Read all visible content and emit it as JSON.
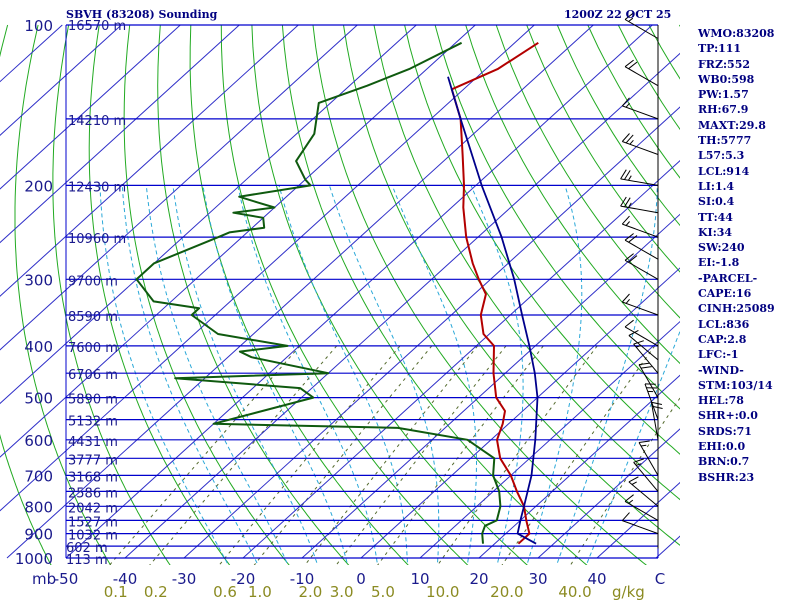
{
  "header": {
    "station_title": "SBVH (83208) Sounding",
    "timestamp": "1200Z 22 OCT 25"
  },
  "indices": [
    "WMO:83208",
    "TP:111",
    "FRZ:552",
    "WB0:598",
    "PW:1.57",
    "RH:67.9",
    "MAXT:29.8",
    "TH:5777",
    "L57:5.3",
    "LCL:914",
    "LI:1.4",
    "SI:0.4",
    "TT:44",
    "KI:34",
    "SW:240",
    "EI:-1.8",
    "-PARCEL-",
    "CAPE:16",
    "CINH:25089",
    "LCL:836",
    "CAP:2.8",
    "LFC:-1",
    "-WIND-",
    "STM:103/14",
    "HEL:78",
    "SHR+:0.0",
    "SRDS:71",
    "EHI:0.0",
    "BRN:0.7",
    "BSHR:23"
  ],
  "colors": {
    "isobar": "#0000cd",
    "isotherm": "#2e2ec8",
    "dry_adiabat": "#22aa22",
    "moist_adiabat": "#2aa8d8",
    "mixing_ratio": "#556b2f",
    "temperature": "#b30000",
    "dewpoint": "#0f5a0f",
    "parcel": "#00008b",
    "axis_text": "#1a1a8c",
    "mixing_text": "#8b8b22",
    "wind": "#000000"
  },
  "chart_data": {
    "type": "line",
    "title": "SBVH (83208) Sounding",
    "x_label": "C",
    "y_label": "mb",
    "xlim": [
      -50,
      50
    ],
    "ylim": [
      1000,
      100
    ],
    "pressure_ticks": [
      100,
      200,
      300,
      400,
      500,
      600,
      700,
      800,
      900,
      1000
    ],
    "temperature_ticks": [
      -50,
      -40,
      -30,
      -20,
      -10,
      0,
      10,
      20,
      30,
      40
    ],
    "height_levels": [
      {
        "p": 100,
        "label": "16570 m"
      },
      {
        "p": 150,
        "label": "14210 m"
      },
      {
        "p": 200,
        "label": "12430 m"
      },
      {
        "p": 250,
        "label": "10960 m"
      },
      {
        "p": 300,
        "label": "9700 m"
      },
      {
        "p": 350,
        "label": "8590 m"
      },
      {
        "p": 400,
        "label": "7600 m"
      },
      {
        "p": 450,
        "label": "6706 m"
      },
      {
        "p": 500,
        "label": "5890 m"
      },
      {
        "p": 550,
        "label": "5132 m"
      },
      {
        "p": 600,
        "label": "4431 m"
      },
      {
        "p": 650,
        "label": "3777 m"
      },
      {
        "p": 700,
        "label": "3168 m"
      },
      {
        "p": 750,
        "label": "2586 m"
      },
      {
        "p": 800,
        "label": "2042 m"
      },
      {
        "p": 850,
        "label": "1527 m"
      },
      {
        "p": 900,
        "label": "1032 m"
      },
      {
        "p": 950,
        "label": "602 m"
      },
      {
        "p": 1000,
        "label": "113 m"
      }
    ],
    "mixing_ratio_labels": [
      {
        "w": 0.1,
        "label": "0.1"
      },
      {
        "w": 0.2,
        "label": "0.2"
      },
      {
        "w": 0.6,
        "label": "0.6"
      },
      {
        "w": 1.0,
        "label": "1.0"
      },
      {
        "w": 2.0,
        "label": "2.0"
      },
      {
        "w": 3.0,
        "label": "3.0"
      },
      {
        "w": 5.0,
        "label": "5.0"
      },
      {
        "w": 10.0,
        "label": "10.0"
      },
      {
        "w": 20.0,
        "label": "20.0"
      },
      {
        "w": 40.0,
        "label": "40.0"
      }
    ],
    "mixing_ratio_unit": "g/kg",
    "series": [
      {
        "name": "temperature",
        "points": [
          [
            108,
            -66
          ],
          [
            121,
            -68
          ],
          [
            132,
            -72
          ],
          [
            150,
            -65
          ],
          [
            175,
            -58
          ],
          [
            200,
            -52
          ],
          [
            220,
            -48
          ],
          [
            250,
            -42
          ],
          [
            280,
            -36
          ],
          [
            300,
            -32
          ],
          [
            320,
            -28
          ],
          [
            350,
            -25
          ],
          [
            380,
            -21
          ],
          [
            400,
            -17
          ],
          [
            450,
            -12
          ],
          [
            500,
            -7
          ],
          [
            530,
            -3
          ],
          [
            560,
            -1
          ],
          [
            600,
            1
          ],
          [
            650,
            5
          ],
          [
            700,
            10
          ],
          [
            750,
            14
          ],
          [
            800,
            18
          ],
          [
            850,
            21
          ],
          [
            900,
            24
          ],
          [
            940,
            24
          ]
        ]
      },
      {
        "name": "dewpoint",
        "points": [
          [
            108,
            -79
          ],
          [
            121,
            -83
          ],
          [
            130,
            -87
          ],
          [
            140,
            -92
          ],
          [
            160,
            -87
          ],
          [
            180,
            -85
          ],
          [
            195,
            -80
          ],
          [
            200,
            -78
          ],
          [
            210,
            -88
          ],
          [
            215,
            -84
          ],
          [
            220,
            -80
          ],
          [
            225,
            -86
          ],
          [
            230,
            -80
          ],
          [
            240,
            -78
          ],
          [
            245,
            -83
          ],
          [
            250,
            -84
          ],
          [
            280,
            -90
          ],
          [
            300,
            -90
          ],
          [
            330,
            -83
          ],
          [
            340,
            -74
          ],
          [
            350,
            -74
          ],
          [
            380,
            -66
          ],
          [
            400,
            -52
          ],
          [
            410,
            -59
          ],
          [
            420,
            -56
          ],
          [
            450,
            -40
          ],
          [
            460,
            -65
          ],
          [
            480,
            -42
          ],
          [
            500,
            -38
          ],
          [
            560,
            -50
          ],
          [
            570,
            -18
          ],
          [
            600,
            -4
          ],
          [
            650,
            4
          ],
          [
            700,
            7
          ],
          [
            750,
            11
          ],
          [
            800,
            14
          ],
          [
            850,
            16
          ],
          [
            870,
            15
          ],
          [
            900,
            16
          ],
          [
            940,
            18
          ]
        ]
      },
      {
        "name": "parcel",
        "points": [
          [
            940,
            27
          ],
          [
            900,
            22
          ],
          [
            850,
            20
          ],
          [
            800,
            18
          ],
          [
            700,
            13.5
          ],
          [
            600,
            7.5
          ],
          [
            500,
            0
          ],
          [
            450,
            -5
          ],
          [
            400,
            -11
          ],
          [
            350,
            -18
          ],
          [
            300,
            -26
          ],
          [
            250,
            -36
          ],
          [
            200,
            -49
          ],
          [
            150,
            -65
          ],
          [
            125,
            -75
          ]
        ]
      }
    ],
    "winds": [
      {
        "p": 106,
        "dir": 300,
        "spd": 15
      },
      {
        "p": 130,
        "dir": 300,
        "spd": 20
      },
      {
        "p": 150,
        "dir": 290,
        "spd": 15
      },
      {
        "p": 175,
        "dir": 290,
        "spd": 25
      },
      {
        "p": 200,
        "dir": 280,
        "spd": 25
      },
      {
        "p": 225,
        "dir": 280,
        "spd": 25
      },
      {
        "p": 250,
        "dir": 290,
        "spd": 15
      },
      {
        "p": 275,
        "dir": 300,
        "spd": 20
      },
      {
        "p": 300,
        "dir": 300,
        "spd": 20
      },
      {
        "p": 350,
        "dir": 290,
        "spd": 15
      },
      {
        "p": 400,
        "dir": 300,
        "spd": 10
      },
      {
        "p": 425,
        "dir": 310,
        "spd": 10
      },
      {
        "p": 450,
        "dir": 320,
        "spd": 15
      },
      {
        "p": 500,
        "dir": 330,
        "spd": 20
      },
      {
        "p": 550,
        "dir": 340,
        "spd": 25
      },
      {
        "p": 600,
        "dir": 350,
        "spd": 20
      },
      {
        "p": 700,
        "dir": 330,
        "spd": 15
      },
      {
        "p": 750,
        "dir": 320,
        "spd": 15
      },
      {
        "p": 800,
        "dir": 310,
        "spd": 15
      },
      {
        "p": 850,
        "dir": 300,
        "spd": 15
      },
      {
        "p": 900,
        "dir": 290,
        "spd": 10
      }
    ]
  }
}
